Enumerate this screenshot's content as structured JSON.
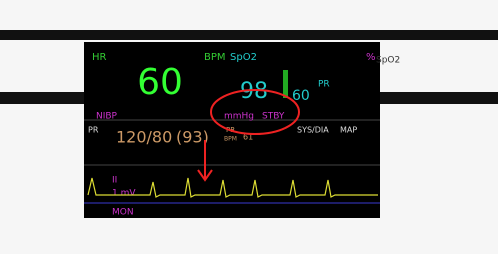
{
  "hr": {
    "label": "HR",
    "unit": "BPM",
    "value": "60"
  },
  "spo2": {
    "label": "SpO2",
    "unit": "%",
    "value": "98"
  },
  "pr": {
    "label": "PR",
    "value": "60"
  },
  "nibp": {
    "label": "NIBP",
    "unit": "mmHg",
    "status": "STBY",
    "value": "120/80",
    "map": "(93)",
    "pr_label": "PR",
    "pr_unit": "BPM",
    "pr_value": "61",
    "sys_dia": "SYS/DIA",
    "map_label": "MAP",
    "side_label": "PR"
  },
  "ecg": {
    "lead": "II",
    "scale": "1 mV",
    "mode": "MON"
  },
  "side": {
    "unit": "%",
    "label": "SpO2"
  }
}
